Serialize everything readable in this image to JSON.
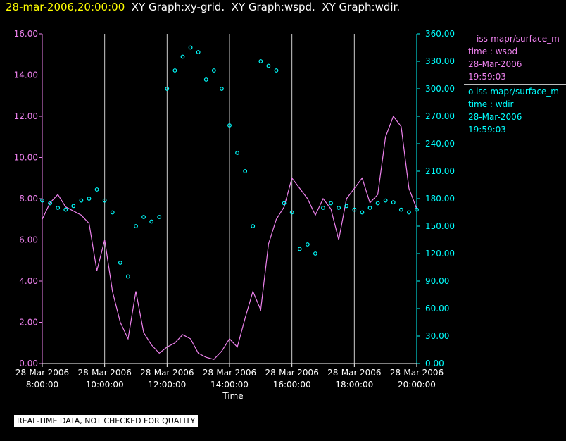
{
  "header": {
    "time": "28-mar-2006,20:00:00",
    "graphs": "  XY Graph:xy-grid.  XY Graph:wspd.  XY Graph:wdir."
  },
  "legend": {
    "wspd": {
      "name": "—iss-mapr/surface_m",
      "line2": "time : wspd",
      "line3": "28-Mar-2006",
      "line4": "19:59:03"
    },
    "wdir": {
      "name": "o  iss-mapr/surface_m",
      "line2": "time : wdir",
      "line3": "28-Mar-2006",
      "line4": "19:59:03"
    }
  },
  "footer_note": "REAL-TIME DATA, NOT CHECKED FOR QUALITY",
  "colors": {
    "wspd": "#ee82ee",
    "wdir": "#00ffff",
    "grid": "#cccccc"
  },
  "chart_data": {
    "type": "scatter",
    "xlabel": "Time",
    "x_ticks": [
      {
        "date": "28-Mar-2006",
        "time": "8:00:00"
      },
      {
        "date": "28-Mar-2006",
        "time": "10:00:00"
      },
      {
        "date": "28-Mar-2006",
        "time": "12:00:00"
      },
      {
        "date": "28-Mar-2006",
        "time": "14:00:00"
      },
      {
        "date": "28-Mar-2006",
        "time": "16:00:00"
      },
      {
        "date": "28-Mar-2006",
        "time": "18:00:00"
      },
      {
        "date": "28-Mar-2006",
        "time": "20:00:00"
      }
    ],
    "xlim": [
      "28-Mar-2006 08:00:00",
      "28-Mar-2006 20:00:00"
    ],
    "y_left": {
      "ylim": [
        0,
        16
      ],
      "ticks": [
        "0.00",
        "2.00",
        "4.00",
        "6.00",
        "8.00",
        "10.00",
        "12.00",
        "14.00",
        "16.00"
      ]
    },
    "y_right": {
      "ylim": [
        0,
        360
      ],
      "ticks": [
        "0.00",
        "30.00",
        "60.00",
        "90.00",
        "120.00",
        "150.00",
        "180.00",
        "210.00",
        "240.00",
        "270.00",
        "300.00",
        "330.00",
        "360.00"
      ]
    },
    "grid": "vertical",
    "series": [
      {
        "type": "line",
        "axis": "left",
        "x": [
          "08:00",
          "08:15",
          "08:30",
          "08:45",
          "09:00",
          "09:15",
          "09:30",
          "09:45",
          "10:00",
          "10:15",
          "10:30",
          "10:45",
          "11:00",
          "11:15",
          "11:30",
          "11:45",
          "12:00",
          "12:15",
          "12:30",
          "12:45",
          "13:00",
          "13:15",
          "13:30",
          "13:45",
          "14:00",
          "14:15",
          "14:30",
          "14:45",
          "15:00",
          "15:15",
          "15:30",
          "15:45",
          "16:00",
          "16:15",
          "16:30",
          "16:45",
          "17:00",
          "17:15",
          "17:30",
          "17:45",
          "18:00",
          "18:15",
          "18:30",
          "18:45",
          "19:00",
          "19:15",
          "19:30",
          "19:45",
          "20:00"
        ],
        "values": [
          7.0,
          7.8,
          8.2,
          7.6,
          7.4,
          7.2,
          6.8,
          4.5,
          6.0,
          3.5,
          2.0,
          1.2,
          3.5,
          1.5,
          0.9,
          0.5,
          0.8,
          1.0,
          1.4,
          1.2,
          0.5,
          0.3,
          0.2,
          0.6,
          1.2,
          0.8,
          2.2,
          3.5,
          2.6,
          5.8,
          7.0,
          7.6,
          9.0,
          8.5,
          8.0,
          7.2,
          8.0,
          7.5,
          6.0,
          8.0,
          8.5,
          9.0,
          7.8,
          8.2,
          11.0,
          12.0,
          11.5,
          8.5,
          7.5
        ]
      },
      {
        "type": "scatter",
        "axis": "right",
        "x": [
          "08:00",
          "08:15",
          "08:30",
          "08:45",
          "09:00",
          "09:15",
          "09:30",
          "09:45",
          "10:00",
          "10:15",
          "10:30",
          "10:45",
          "11:00",
          "11:15",
          "11:30",
          "11:45",
          "12:00",
          "12:15",
          "12:30",
          "12:45",
          "13:00",
          "13:15",
          "13:30",
          "13:45",
          "14:00",
          "14:15",
          "14:30",
          "14:45",
          "15:00",
          "15:15",
          "15:30",
          "15:45",
          "16:00",
          "16:15",
          "16:30",
          "16:45",
          "17:00",
          "17:15",
          "17:30",
          "17:45",
          "18:00",
          "18:15",
          "18:30",
          "18:45",
          "19:00",
          "19:15",
          "19:30",
          "19:45",
          "20:00"
        ],
        "values": [
          178,
          175,
          170,
          168,
          172,
          178,
          180,
          190,
          178,
          165,
          110,
          95,
          150,
          160,
          155,
          160,
          300,
          320,
          335,
          345,
          340,
          310,
          320,
          300,
          260,
          230,
          210,
          150,
          330,
          325,
          320,
          175,
          165,
          125,
          130,
          120,
          170,
          175,
          170,
          172,
          168,
          165,
          170,
          175,
          178,
          176,
          168,
          165,
          168
        ]
      }
    ]
  }
}
